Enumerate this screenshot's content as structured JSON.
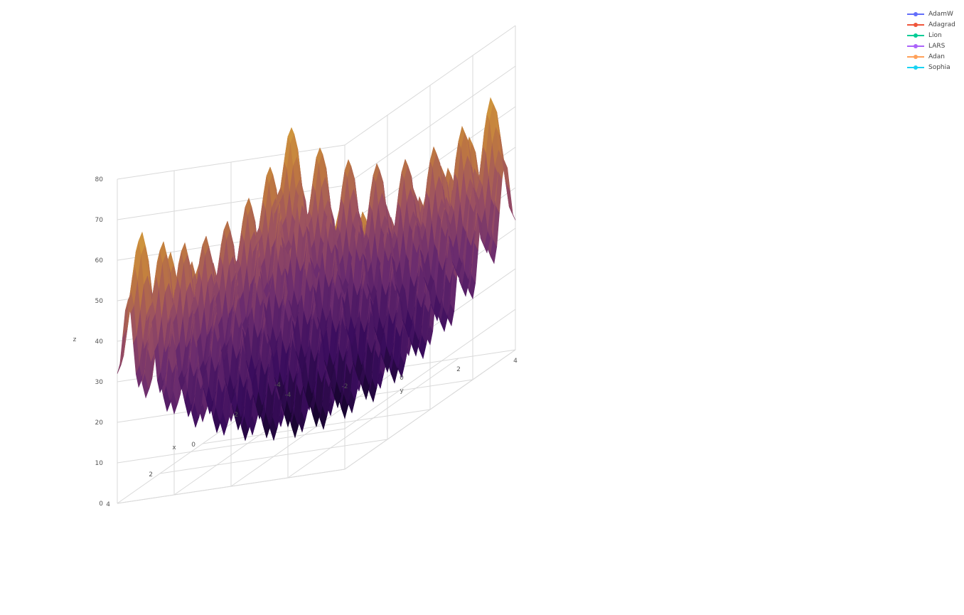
{
  "chart_data": {
    "type": "surface3d",
    "title": "",
    "axes": {
      "x": {
        "label": "x",
        "range": [
          -4,
          4
        ],
        "ticks": [
          "-4",
          "-2",
          "0",
          "2",
          "4"
        ]
      },
      "y": {
        "label": "y",
        "range": [
          -4,
          4
        ],
        "ticks": [
          "-4",
          "-2",
          "0",
          "2",
          "4"
        ]
      },
      "z": {
        "label": "z",
        "range": [
          0,
          80
        ],
        "ticks": [
          "0",
          "10",
          "20",
          "30",
          "40",
          "50",
          "60",
          "70",
          "80"
        ]
      }
    },
    "surface": {
      "colorscale": [
        "#0d0221",
        "#3b0d5e",
        "#6b2c6e",
        "#9a4f62",
        "#c07a3f",
        "#d6a23c",
        "#dccd6a"
      ],
      "zmin": 0,
      "zmax": 80,
      "description_fn": "rastrigin"
    },
    "series": [
      {
        "name": "AdamW",
        "color": "#636efa",
        "x": [],
        "y": [],
        "z": []
      },
      {
        "name": "Adagrad",
        "color": "#ef553b",
        "x": [],
        "y": [],
        "z": []
      },
      {
        "name": "Lion",
        "color": "#00cc96",
        "x": [],
        "y": [],
        "z": []
      },
      {
        "name": "LARS",
        "color": "#ab63fa",
        "x": [],
        "y": [],
        "z": []
      },
      {
        "name": "Adan",
        "color": "#ffa15a",
        "x": [],
        "y": [],
        "z": []
      },
      {
        "name": "Sophia",
        "color": "#19d3f3",
        "x": [],
        "y": [],
        "z": []
      }
    ],
    "legend": {
      "position": "top-right"
    },
    "grid": true
  }
}
